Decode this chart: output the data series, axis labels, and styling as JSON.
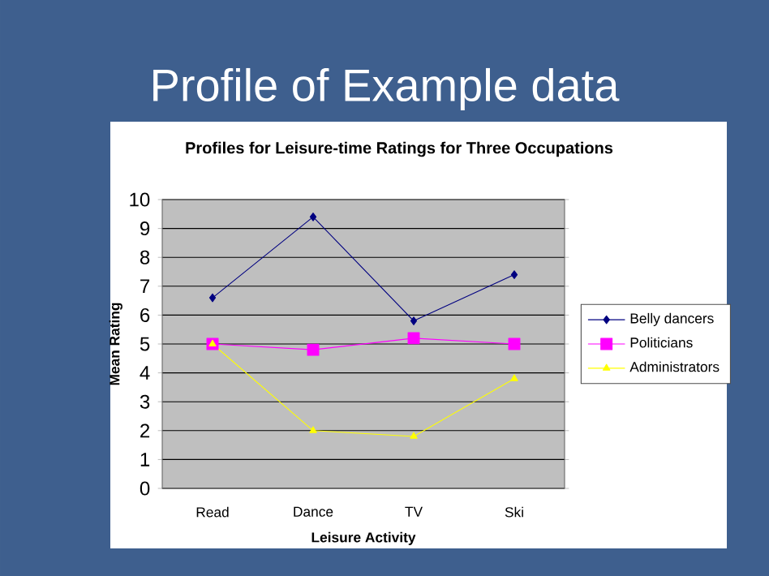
{
  "chart_data": {
    "type": "line",
    "title": "Profile of Example data",
    "subtitle": "Profiles for Leisure-time Ratings for Three Occupations",
    "xlabel": "Leisure Activity",
    "ylabel": "Mean Rating",
    "categories": [
      "Read",
      "Dance",
      "TV",
      "Ski"
    ],
    "series": [
      {
        "name": "Belly dancers",
        "color": "#000080",
        "marker": "diamond",
        "values": [
          6.6,
          9.4,
          5.8,
          7.4
        ]
      },
      {
        "name": "Politicians",
        "color": "#ff00ff",
        "marker": "square",
        "values": [
          5.0,
          4.8,
          5.2,
          5.0
        ]
      },
      {
        "name": "Administrators",
        "color": "#ffff00",
        "marker": "triangle",
        "values": [
          5.0,
          2.0,
          1.8,
          3.8
        ]
      }
    ],
    "ylim": [
      0,
      10
    ],
    "yticks": [
      0,
      1,
      2,
      3,
      4,
      5,
      6,
      7,
      8,
      9,
      10
    ],
    "grid": "y",
    "legend": "right",
    "line_style": "solid"
  }
}
